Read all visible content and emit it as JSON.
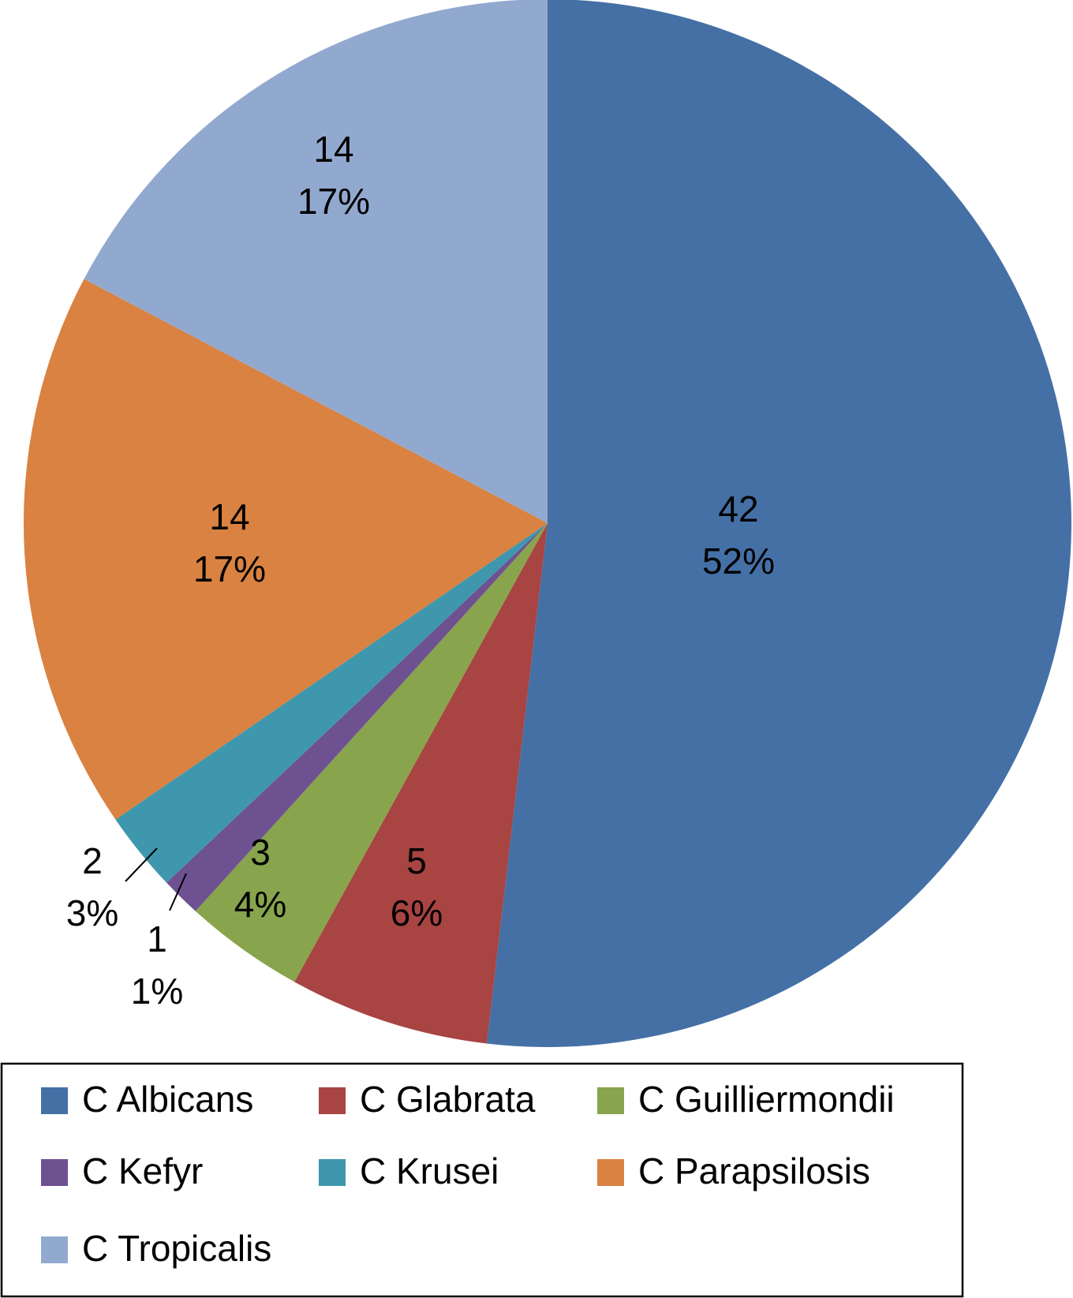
{
  "chart_data": {
    "type": "pie",
    "categories": [
      "C Albicans",
      "C Glabrata",
      "C Guilliermondii",
      "C Kefyr",
      "C Krusei",
      "C Parapsilosis",
      "C Tropicalis"
    ],
    "values": [
      42,
      5,
      3,
      1,
      2,
      14,
      14
    ],
    "percents": [
      "52%",
      "6%",
      "4%",
      "1%",
      "3%",
      "17%",
      "17%"
    ],
    "colors": [
      "#4570a5",
      "#a84442",
      "#88a44c",
      "#6e5191",
      "#3f97ad",
      "#d98241",
      "#92a9cf"
    ],
    "legend": "bottom"
  }
}
